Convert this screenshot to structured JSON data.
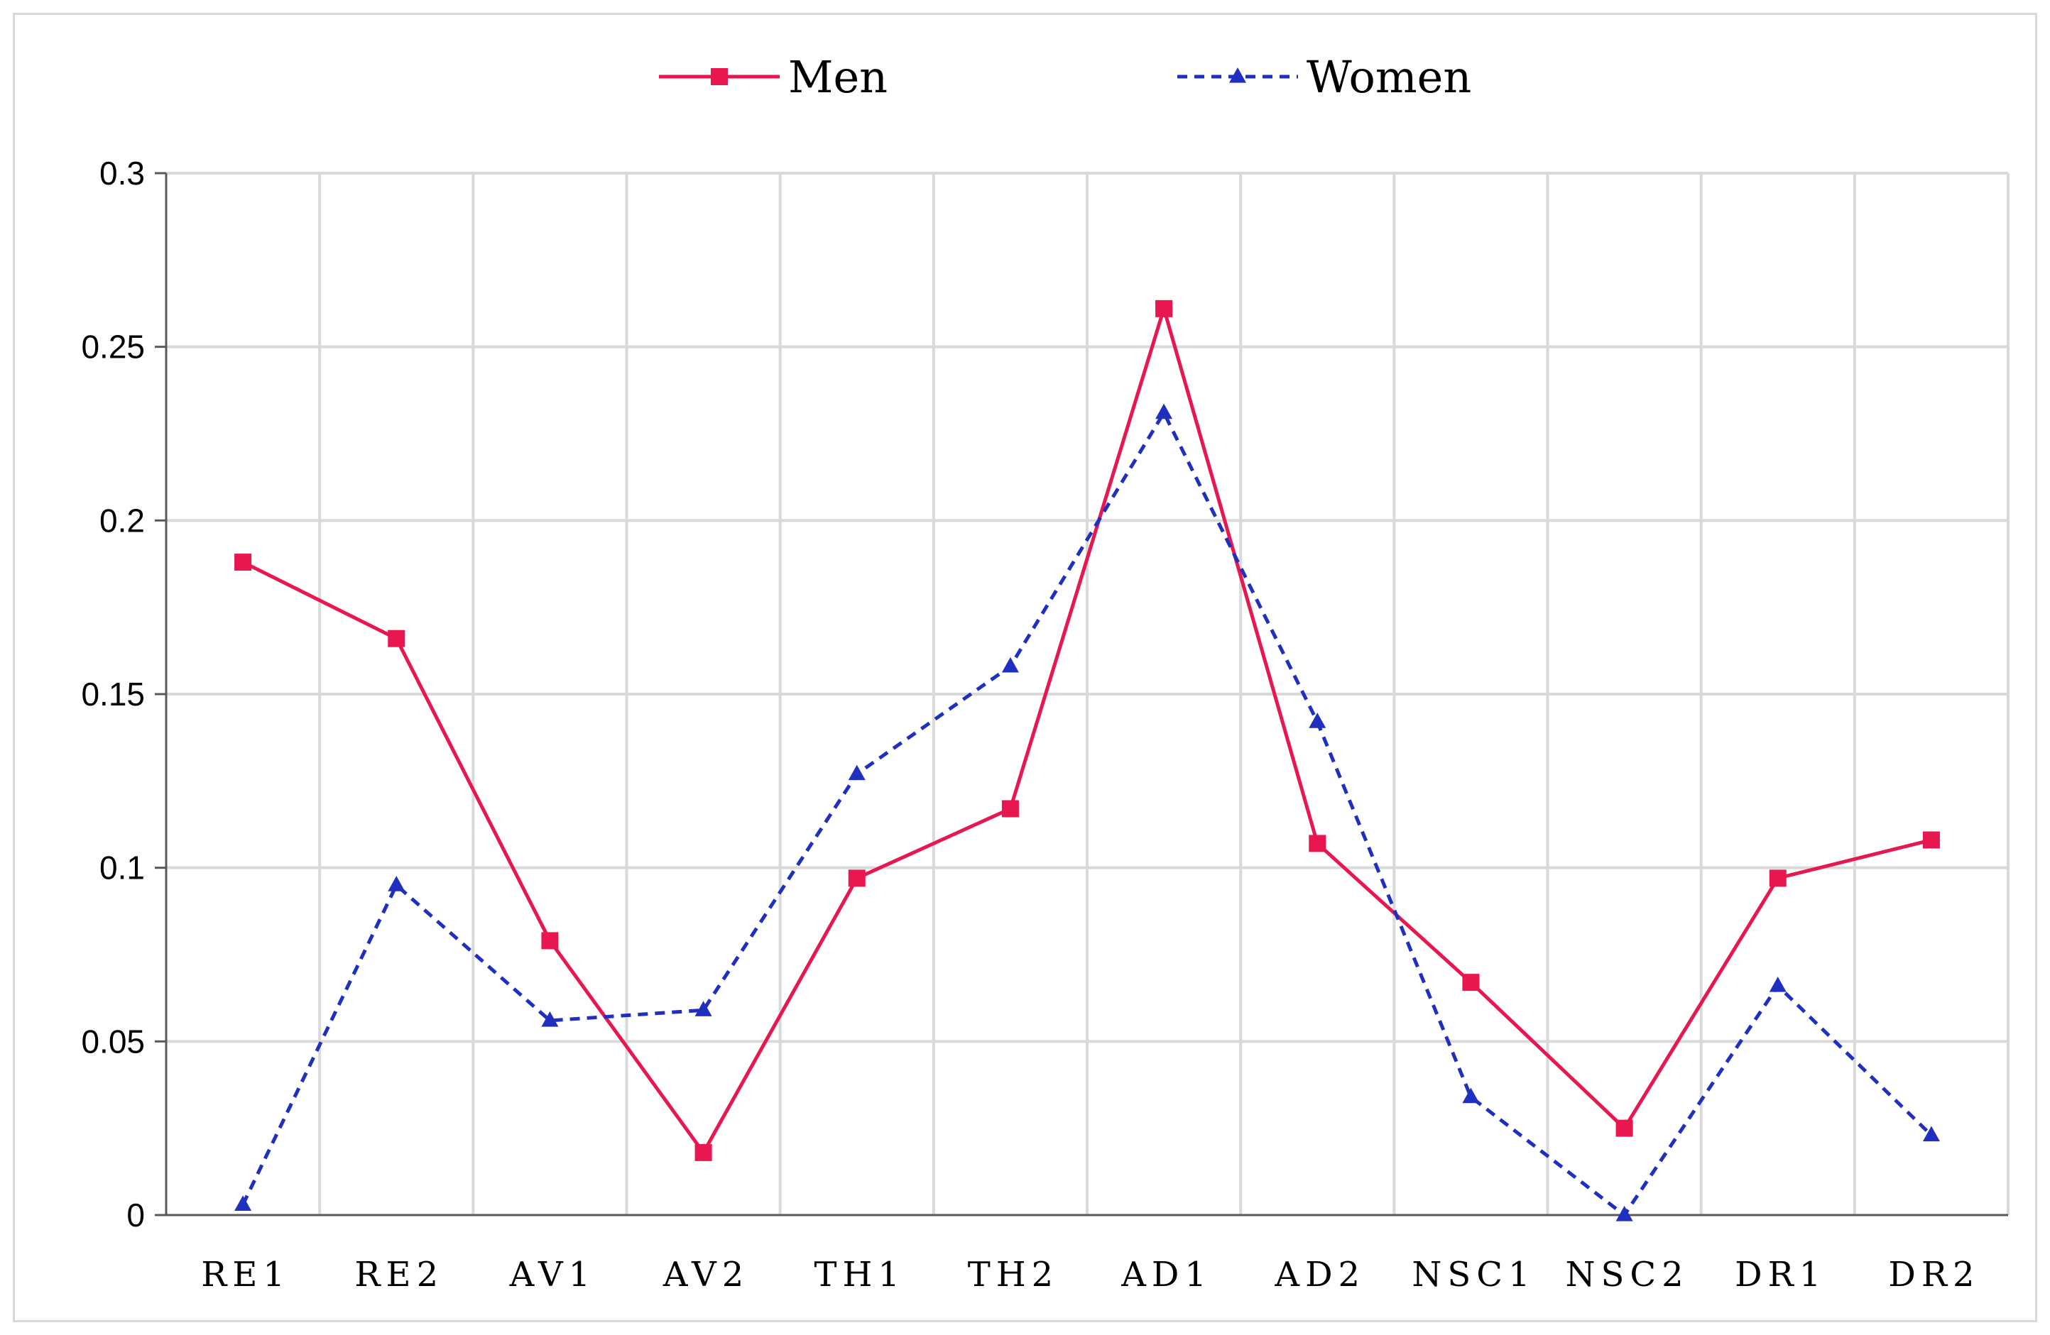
{
  "chart_data": {
    "type": "line",
    "title": "",
    "xlabel": "",
    "ylabel": "",
    "categories": [
      "RE1",
      "RE2",
      "AV1",
      "AV2",
      "TH1",
      "TH2",
      "AD1",
      "AD2",
      "NSC1",
      "NSC2",
      "DR1",
      "DR2"
    ],
    "ylim": [
      0,
      0.3
    ],
    "yticks": [
      0,
      0.05,
      0.1,
      0.15,
      0.2,
      0.25,
      0.3
    ],
    "ytick_labels": [
      "0",
      "0.05",
      "0.1",
      "0.15",
      "0.2",
      "0.25",
      "0.3"
    ],
    "grid": true,
    "legend_position": "top-center",
    "series": [
      {
        "name": "Men",
        "color": "#e8174f",
        "line_style": "solid",
        "marker": "square",
        "values": [
          0.188,
          0.166,
          0.079,
          0.018,
          0.097,
          0.117,
          0.261,
          0.107,
          0.067,
          0.025,
          0.097,
          0.108
        ]
      },
      {
        "name": "Women",
        "color": "#1f2fbf",
        "line_style": "dashed",
        "marker": "triangle",
        "values": [
          0.003,
          0.095,
          0.056,
          0.059,
          0.127,
          0.158,
          0.231,
          0.142,
          0.034,
          0.0,
          0.066,
          0.023
        ]
      }
    ]
  }
}
